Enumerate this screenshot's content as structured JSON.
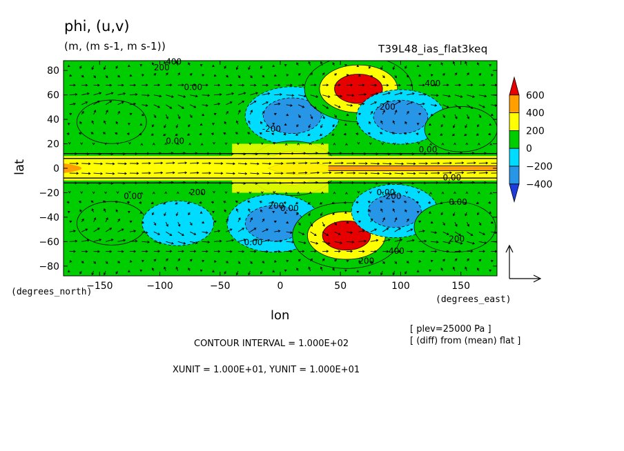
{
  "chart_data": {
    "type": "heatmap",
    "title": "phi, (u,v)",
    "units": "(m, (m s-1, m s-1))",
    "experiment": "T39L48_ias_flat3keq",
    "xlabel": "lon",
    "ylabel": "lat",
    "xunit_label": "(degrees_east)",
    "yunit_label": "(degrees_north)",
    "x_ticks": [
      -150,
      -100,
      -50,
      0,
      50,
      100,
      150
    ],
    "y_ticks": [
      80,
      60,
      40,
      20,
      0,
      -20,
      -40,
      -60,
      -80
    ],
    "xlim": [
      -180,
      180
    ],
    "ylim": [
      -88,
      88
    ],
    "colorbar": {
      "labels": [
        "600",
        "400",
        "200",
        "0",
        "-200",
        "-400"
      ],
      "levels": [
        -600,
        -400,
        -200,
        0,
        200,
        400,
        600
      ],
      "colors": [
        "#1e3cdc",
        "#2896e6",
        "#00dcff",
        "#00cd00",
        "#ffff00",
        "#ffa000",
        "#e60000"
      ]
    },
    "contour_labels": [
      "400",
      "200",
      "0.00",
      "0.00",
      "0.00",
      "200",
      "-200",
      "400",
      "0.00",
      "0.00",
      "-200",
      "200",
      "0.00",
      "0.00",
      "-200",
      "200",
      "400",
      "0.00",
      "0.00",
      "200"
    ],
    "features": [
      {
        "lon": -140,
        "lat": 38,
        "phi": 230
      },
      {
        "lon": 10,
        "lat": 43,
        "phi": -480
      },
      {
        "lon": 65,
        "lat": 65,
        "phi": 620
      },
      {
        "lon": 100,
        "lat": 42,
        "phi": -420
      },
      {
        "lon": 150,
        "lat": 32,
        "phi": 260
      },
      {
        "lon": 10,
        "lat": 0,
        "phi": 420
      },
      {
        "lon": -140,
        "lat": -45,
        "phi": 230
      },
      {
        "lon": -85,
        "lat": -45,
        "phi": -250
      },
      {
        "lon": -5,
        "lat": -45,
        "phi": -480
      },
      {
        "lon": 55,
        "lat": -55,
        "phi": 620
      },
      {
        "lon": 95,
        "lat": -35,
        "phi": -400
      },
      {
        "lon": 145,
        "lat": -48,
        "phi": 350
      }
    ],
    "contour_interval_text": "CONTOUR INTERVAL = 1.000E+02",
    "unit_text": "XUNIT = 1.000E+01, YUNIT = 1.000E+01",
    "plev_text": "[ plev=25000 Pa ]",
    "diff_text": "[ (diff) from (mean) flat ]",
    "reference_vector": "arrows-up-and-right"
  }
}
